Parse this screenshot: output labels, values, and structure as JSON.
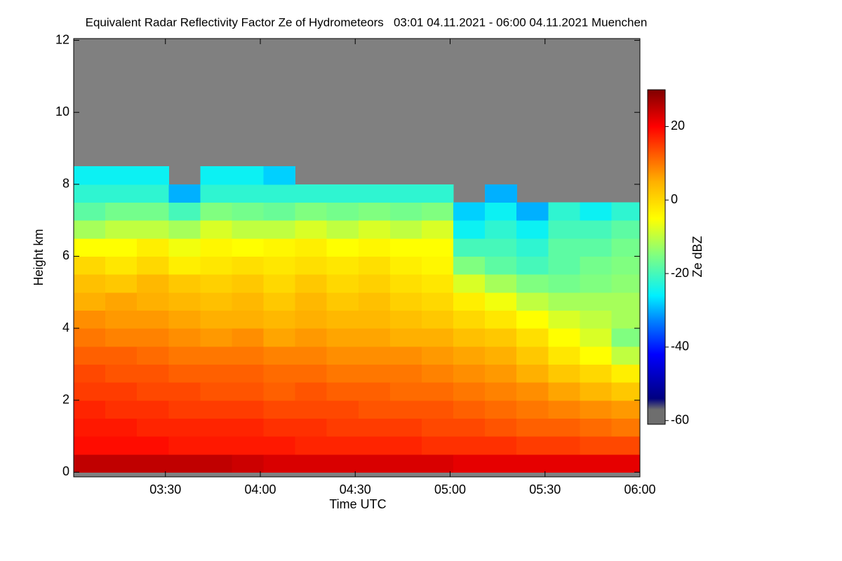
{
  "chart_data": {
    "type": "heatmap",
    "title": "Equivalent Radar Reflectivity Factor Ze of Hydrometeors   03:01 04.11.2021 - 06:00 04.11.2021 Muenchen",
    "x_label": "Time UTC",
    "y_label": "Height km",
    "colorbar_label": "Ze dBZ",
    "xlim": [
      "03:01",
      "06:00"
    ],
    "xticks": [
      "03:30",
      "04:00",
      "04:30",
      "05:00",
      "05:30",
      "06:00"
    ],
    "ylim": [
      -0.13,
      12.05
    ],
    "yticks": [
      0,
      2,
      4,
      6,
      8,
      10,
      12
    ],
    "clim": [
      -61,
      30
    ],
    "cticks": [
      -60,
      -40,
      -20,
      0,
      20
    ],
    "missing_color": "#808080",
    "colorscale": [
      [
        -61,
        "#6e6e6e"
      ],
      [
        -57,
        "#6e6e6e"
      ],
      [
        -54,
        "#000080"
      ],
      [
        -42,
        "#0000ff"
      ],
      [
        -33,
        "#0080ff"
      ],
      [
        -26,
        "#00f0ff"
      ],
      [
        -15,
        "#80ff80"
      ],
      [
        -5,
        "#ffff00"
      ],
      [
        5,
        "#ffb000"
      ],
      [
        12,
        "#ff6000"
      ],
      [
        20,
        "#ff0000"
      ],
      [
        30,
        "#800000"
      ]
    ],
    "x": [
      "03:06",
      "03:16",
      "03:26",
      "03:36",
      "03:46",
      "03:56",
      "04:06",
      "04:16",
      "04:26",
      "04:36",
      "04:46",
      "04:56",
      "05:06",
      "05:16",
      "05:26",
      "05:36",
      "05:46",
      "05:56"
    ],
    "y": [
      0.25,
      0.75,
      1.25,
      1.75,
      2.25,
      2.75,
      3.25,
      3.75,
      4.25,
      4.75,
      5.25,
      5.75,
      6.25,
      6.75,
      7.25,
      7.75,
      8.25
    ],
    "z": [
      [
        25,
        25,
        25,
        25,
        25,
        24,
        23,
        23,
        23,
        23,
        23,
        23,
        22,
        22,
        22,
        22,
        22,
        22
      ],
      [
        19,
        19,
        19,
        18,
        18,
        18,
        18,
        17,
        17,
        17,
        17,
        16,
        16,
        16,
        15,
        15,
        14,
        14
      ],
      [
        18,
        18,
        17,
        17,
        17,
        17,
        16,
        16,
        15,
        15,
        15,
        14,
        14,
        13,
        12,
        12,
        11,
        10
      ],
      [
        17,
        16,
        16,
        15,
        15,
        15,
        14,
        14,
        14,
        13,
        13,
        13,
        12,
        11,
        10,
        9,
        8,
        7
      ],
      [
        15,
        15,
        14,
        14,
        13,
        13,
        12,
        13,
        12,
        12,
        11,
        11,
        10,
        9,
        8,
        6,
        4,
        2
      ],
      [
        14,
        13,
        13,
        12,
        12,
        12,
        11,
        11,
        10,
        10,
        10,
        9,
        8,
        7,
        5,
        2,
        0,
        -3
      ],
      [
        12,
        12,
        11,
        10,
        10,
        10,
        9,
        9,
        8,
        8,
        8,
        7,
        6,
        5,
        2,
        -2,
        -5,
        -10
      ],
      [
        10,
        9,
        9,
        8,
        7,
        8,
        6,
        7,
        6,
        6,
        5,
        5,
        3,
        2,
        -1,
        -5,
        -8,
        -15
      ],
      [
        8,
        7,
        7,
        6,
        5,
        5,
        4,
        5,
        4,
        4,
        3,
        2,
        0,
        -2,
        -5,
        -8,
        -10,
        -12
      ],
      [
        5,
        6,
        5,
        4,
        3,
        4,
        2,
        4,
        2,
        3,
        1,
        0,
        -3,
        -6,
        -10,
        -12,
        -12,
        -12
      ],
      [
        3,
        2,
        4,
        2,
        1,
        2,
        0,
        2,
        0,
        1,
        -1,
        -2,
        -8,
        -12,
        -15,
        -16,
        -15,
        -14
      ],
      [
        0,
        -2,
        0,
        -3,
        -2,
        -1,
        -2,
        -1,
        -2,
        -1,
        -3,
        -4,
        -15,
        -18,
        -20,
        -18,
        -16,
        -15
      ],
      [
        -5,
        -5,
        -3,
        -6,
        -4,
        -5,
        -4,
        -3,
        -5,
        -4,
        -5,
        -5,
        -20,
        -20,
        -22,
        -18,
        -18,
        -16
      ],
      [
        -12,
        -10,
        -10,
        -12,
        -8,
        -10,
        -10,
        -8,
        -10,
        -8,
        -10,
        -8,
        -25,
        -22,
        -25,
        -20,
        -20,
        -18
      ],
      [
        -18,
        -16,
        -16,
        -20,
        -15,
        -16,
        -17,
        -15,
        -16,
        -15,
        -16,
        -15,
        -28,
        -25,
        -30,
        -22,
        -25,
        -22
      ],
      [
        -22,
        -22,
        -22,
        -30,
        -22,
        -22,
        -22,
        -22,
        -22,
        -22,
        -22,
        -22,
        null,
        -30,
        null,
        null,
        null,
        null
      ],
      [
        -25,
        -25,
        -25,
        null,
        -25,
        -25,
        -28,
        null,
        null,
        null,
        null,
        null,
        null,
        null,
        null,
        null,
        null,
        null
      ]
    ]
  }
}
